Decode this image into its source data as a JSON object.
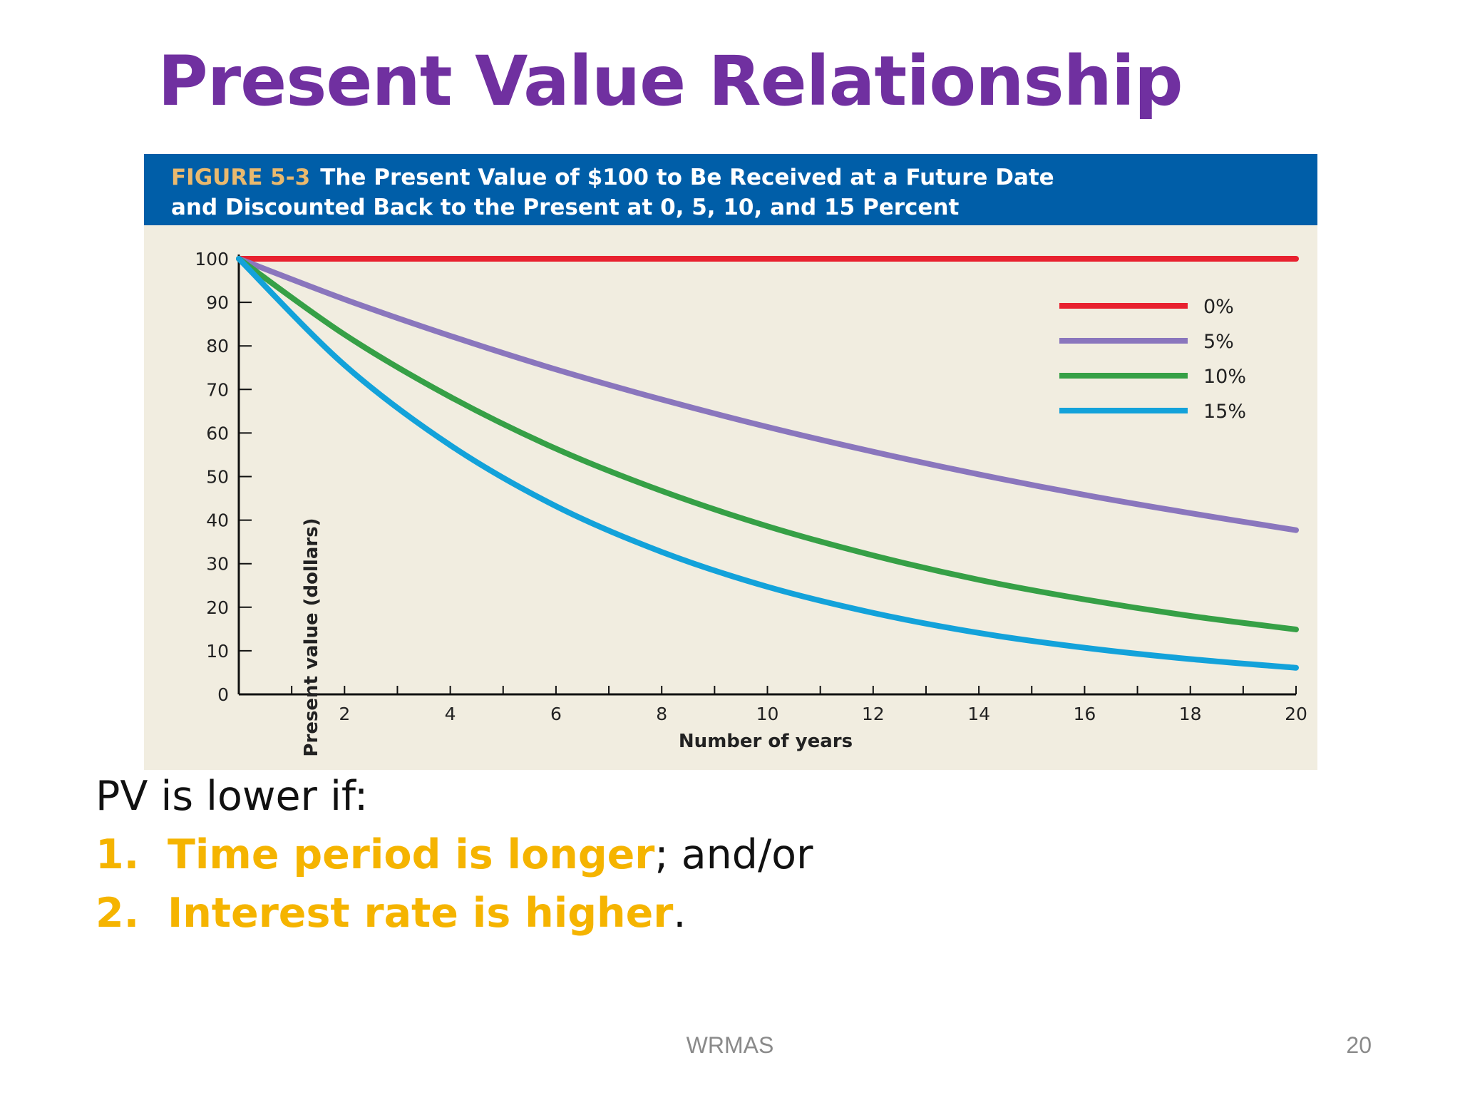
{
  "slide": {
    "title": "Present Value Relationship",
    "footer_center": "WRMAS",
    "page_number": "20"
  },
  "figure": {
    "number": "FIGURE 5-3",
    "title_line1": "The Present Value of $100 to Be Received at a Future Date",
    "title_line2": "and Discounted Back to the Present at 0, 5, 10, and 15 Percent"
  },
  "chart_data": {
    "type": "line",
    "xlabel": "Number of years",
    "ylabel": "Present value (dollars)",
    "xlim": [
      0,
      20
    ],
    "ylim": [
      0,
      100
    ],
    "x_ticks": [
      2,
      4,
      6,
      8,
      10,
      12,
      14,
      16,
      18,
      20
    ],
    "y_ticks": [
      0,
      10,
      20,
      30,
      40,
      50,
      60,
      70,
      80,
      90,
      100
    ],
    "grid": false,
    "legend_position": "top-right",
    "x": [
      0,
      2,
      4,
      6,
      8,
      10,
      12,
      14,
      16,
      18,
      20
    ],
    "series": [
      {
        "name": "0%",
        "color": "#e8212f",
        "values": [
          100,
          100,
          100,
          100,
          100,
          100,
          100,
          100,
          100,
          100,
          100
        ]
      },
      {
        "name": "5%",
        "color": "#8a76bd",
        "values": [
          100,
          90.7,
          82.3,
          74.6,
          67.7,
          61.4,
          55.7,
          50.5,
          45.8,
          41.6,
          37.7
        ]
      },
      {
        "name": "10%",
        "color": "#36a046",
        "values": [
          100,
          82.6,
          68.3,
          56.4,
          46.7,
          38.6,
          31.9,
          26.3,
          21.8,
          18.0,
          14.9
        ]
      },
      {
        "name": "15%",
        "color": "#13a2da",
        "values": [
          100,
          75.6,
          57.2,
          43.2,
          32.7,
          24.7,
          18.7,
          14.1,
          10.7,
          8.1,
          6.1
        ]
      }
    ]
  },
  "bullets": {
    "intro": "PV is lower if:",
    "items": [
      {
        "number": "1.",
        "highlight": "Time period is longer",
        "rest": "; and/or"
      },
      {
        "number": "2.",
        "highlight": "Interest rate is higher",
        "rest": "."
      }
    ]
  }
}
